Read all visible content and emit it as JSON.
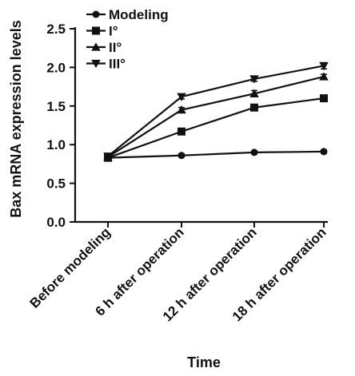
{
  "chart_data": {
    "type": "line",
    "title": "",
    "xlabel": "Time",
    "ylabel": "Bax mRNA expression levels",
    "categories": [
      "Before modeling",
      "6 h after operation",
      "12 h after operation",
      "18 h after operation"
    ],
    "ylim": [
      0,
      2.5
    ],
    "yticks": [
      "0.0",
      "0.5",
      "1.0",
      "1.5",
      "2.0",
      "2.5"
    ],
    "ytick_values": [
      0,
      0.5,
      1.0,
      1.5,
      2.0,
      2.5
    ],
    "grid": false,
    "legend_position": "top-left",
    "series": [
      {
        "name": "Modeling",
        "marker": "circle",
        "values": [
          0.83,
          0.86,
          0.9,
          0.91
        ],
        "errors": [
          0.02,
          0.02,
          0.02,
          0.02
        ]
      },
      {
        "name": "I°",
        "marker": "square",
        "values": [
          0.83,
          1.17,
          1.48,
          1.6
        ],
        "errors": [
          0.02,
          0.03,
          0.03,
          0.03
        ]
      },
      {
        "name": "II°",
        "marker": "triangle-up",
        "values": [
          0.84,
          1.45,
          1.66,
          1.88
        ],
        "errors": [
          0.02,
          0.03,
          0.04,
          0.03
        ]
      },
      {
        "name": "III°",
        "marker": "triangle-down",
        "values": [
          0.85,
          1.62,
          1.85,
          2.02
        ],
        "errors": [
          0.02,
          0.03,
          0.03,
          0.04
        ]
      }
    ],
    "color": "#111111"
  }
}
